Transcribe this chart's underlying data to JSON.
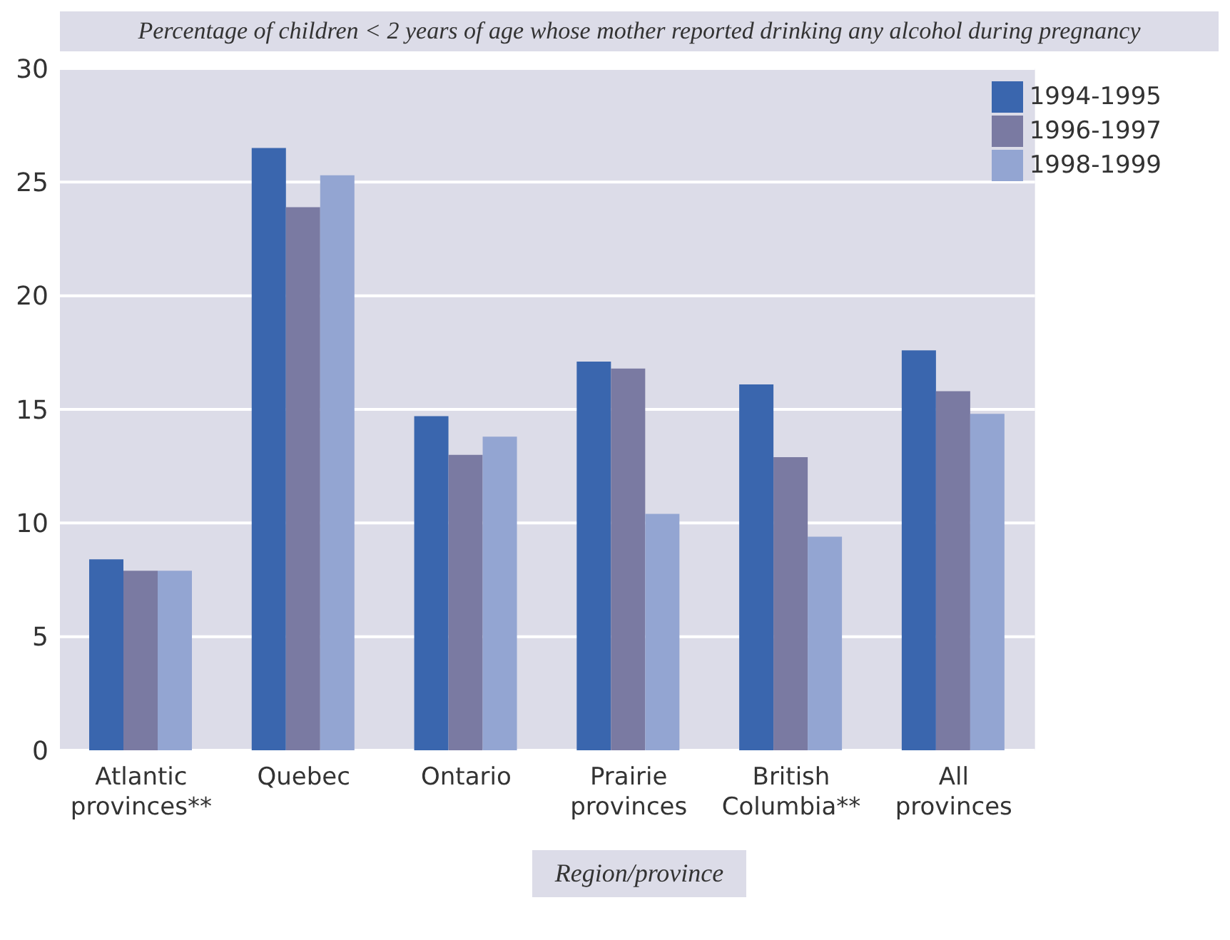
{
  "chart_data": {
    "type": "bar",
    "title": "Percentage of children < 2 years of age whose mother reported drinking any alcohol during pregnancy",
    "xlabel": "Region/province",
    "categories": [
      "Atlantic provinces**",
      "Quebec",
      "Ontario",
      "Prairie provinces",
      "British Columbia**",
      "All provinces"
    ],
    "series": [
      {
        "name": "1994-1995",
        "color": "#3a66ae",
        "values": [
          8.4,
          26.5,
          14.7,
          17.1,
          16.1,
          17.6
        ]
      },
      {
        "name": "1996-1997",
        "color": "#7a7aa2",
        "values": [
          7.9,
          23.9,
          13.0,
          16.8,
          12.9,
          15.8
        ]
      },
      {
        "name": "1998-1999",
        "color": "#93a5d2",
        "values": [
          7.9,
          25.3,
          13.8,
          10.4,
          9.4,
          14.8
        ]
      }
    ],
    "ylim": [
      0,
      30
    ],
    "yticks": [
      0,
      5,
      10,
      15,
      20,
      25,
      30
    ],
    "grid": "y",
    "legend": "top right"
  }
}
